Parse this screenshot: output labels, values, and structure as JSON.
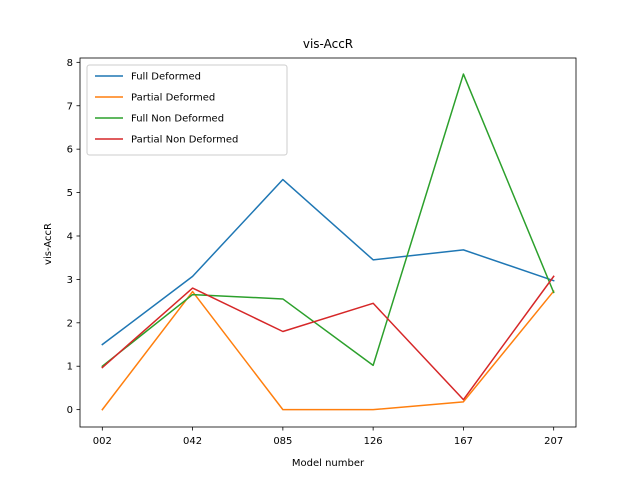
{
  "chart_data": {
    "type": "line",
    "title": "vis-AccR",
    "xlabel": "Model number",
    "ylabel": "vis-AccR",
    "categories": [
      "002",
      "042",
      "085",
      "126",
      "167",
      "207"
    ],
    "ylim": [
      -0.4,
      8.1
    ],
    "yticks": [
      0,
      1,
      2,
      3,
      4,
      5,
      6,
      7,
      8
    ],
    "legend_position": "top-left",
    "grid": false,
    "series": [
      {
        "name": "Full Deformed",
        "color": "#1f77b4",
        "values": [
          1.5,
          3.07,
          5.3,
          3.45,
          3.68,
          2.97
        ]
      },
      {
        "name": "Partial Deformed",
        "color": "#ff7f0e",
        "values": [
          0.0,
          2.72,
          0.0,
          0.0,
          0.18,
          2.73
        ]
      },
      {
        "name": "Full Non Deformed",
        "color": "#2ca02c",
        "values": [
          1.0,
          2.65,
          2.55,
          1.02,
          7.73,
          2.7
        ]
      },
      {
        "name": "Partial Non Deformed",
        "color": "#d62728",
        "values": [
          0.97,
          2.8,
          1.8,
          2.45,
          0.23,
          3.07
        ]
      }
    ]
  }
}
